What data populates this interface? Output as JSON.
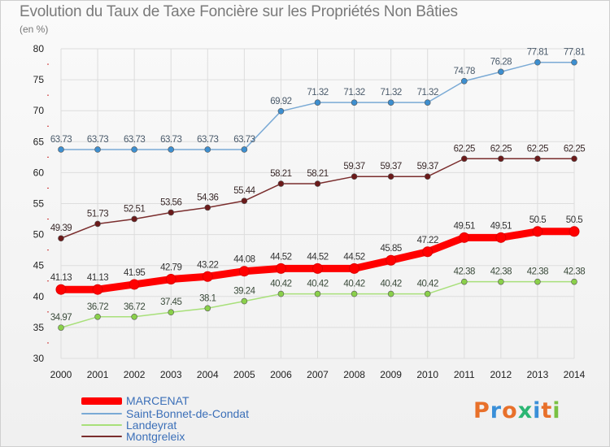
{
  "title": "Evolution du Taux de Taxe Foncière sur les Propriétés Non Bâties",
  "unit_label": "(en %)",
  "logo": "Proxiti",
  "colors": {
    "marcenat": "#ff0000",
    "saint_bonnet": "#7aaad5",
    "landeyrat": "#a8e07a",
    "montgreleix": "#7a2d2d",
    "grid": "#dddddd",
    "axis_text": "#222222"
  },
  "chart_data": {
    "type": "line",
    "x": [
      "2000",
      "2001",
      "2002",
      "2003",
      "2004",
      "2005",
      "2006",
      "2007",
      "2008",
      "2009",
      "2010",
      "2011",
      "2012",
      "2013",
      "2014"
    ],
    "ylim": [
      30,
      80
    ],
    "yticks": [
      30,
      35,
      40,
      45,
      50,
      55,
      60,
      65,
      70,
      75,
      80
    ],
    "grid": true,
    "legend_position": "bottom-left",
    "series": [
      {
        "name": "MARCENAT",
        "values": [
          41.13,
          41.13,
          41.95,
          42.79,
          43.22,
          44.08,
          44.52,
          44.52,
          44.52,
          45.85,
          47.22,
          49.51,
          49.51,
          50.5,
          50.5
        ],
        "labels": [
          "41.13",
          "41.13",
          "41.95",
          "42.79",
          "43.22",
          "44.08",
          "44.52",
          "44.52",
          "44.52",
          "45.85",
          "47.22",
          "49.51",
          "49.51",
          "50.5",
          "50.5"
        ]
      },
      {
        "name": "Saint-Bonnet-de-Condat",
        "values": [
          63.73,
          63.73,
          63.73,
          63.73,
          63.73,
          63.73,
          69.92,
          71.32,
          71.32,
          71.32,
          71.32,
          74.78,
          76.28,
          77.81,
          77.81
        ],
        "labels": [
          "63.73",
          "63.73",
          "63.73",
          "63.73",
          "63.73",
          "63.73",
          "69.92",
          "71.32",
          "71.32",
          "71.32",
          "71.32",
          "74.78",
          "76.28",
          "77.81",
          "77.81"
        ]
      },
      {
        "name": "Landeyrat",
        "values": [
          34.97,
          36.72,
          36.72,
          37.45,
          38.1,
          39.24,
          40.42,
          40.42,
          40.42,
          40.42,
          40.42,
          42.38,
          42.38,
          42.38,
          42.38
        ],
        "labels": [
          "34.97",
          "36.72",
          "36.72",
          "37.45",
          "38.1",
          "39.24",
          "40.42",
          "40.42",
          "40.42",
          "40.42",
          "40.42",
          "42.38",
          "42.38",
          "42.38",
          "42.38"
        ]
      },
      {
        "name": "Montgreleix",
        "values": [
          49.39,
          51.73,
          52.51,
          53.56,
          54.36,
          55.44,
          58.21,
          58.21,
          59.37,
          59.37,
          59.37,
          62.25,
          62.25,
          62.25,
          62.25
        ],
        "labels": [
          "49.39",
          "51.73",
          "52.51",
          "53.56",
          "54.36",
          "55.44",
          "58.21",
          "58.21",
          "59.37",
          "59.37",
          "59.37",
          "62.25",
          "62.25",
          "62.25",
          "62.25"
        ]
      }
    ]
  }
}
